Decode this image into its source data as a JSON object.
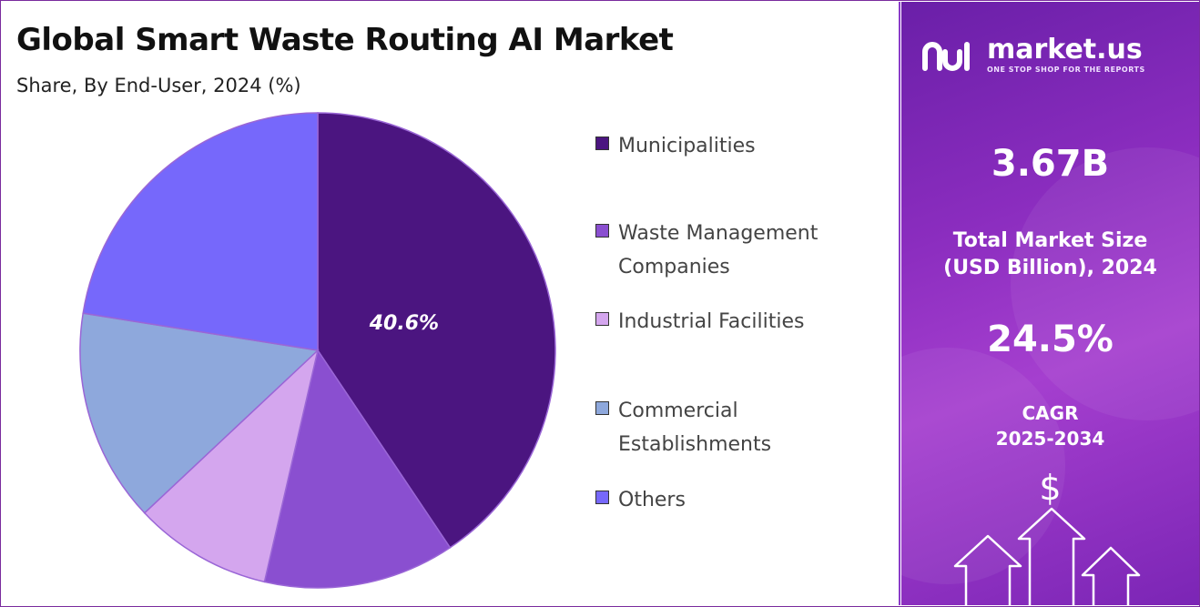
{
  "title": "Global Smart Waste Routing AI Market",
  "subtitle": "Share, By End-User, 2024 (%)",
  "chart_data": {
    "type": "pie",
    "title": "Global Smart Waste Routing AI Market",
    "subtitle": "Share, By End-User, 2024 (%)",
    "categories": [
      "Municipalities",
      "Waste Management Companies",
      "Industrial Facilities",
      "Commercial Establishments",
      "Others"
    ],
    "values": [
      40.6,
      13.0,
      9.4,
      14.5,
      22.5
    ],
    "data_labels": [
      "40.6%",
      "",
      "",
      "",
      ""
    ],
    "colors": [
      "#4b1580",
      "#8a4fd0",
      "#d4a6ee",
      "#8ea8dc",
      "#7668fb"
    ],
    "start_angle_deg": 0,
    "direction": "clockwise",
    "legend_position": "right"
  },
  "legend": {
    "items": [
      {
        "label": "Municipalities",
        "color": "#4b1580"
      },
      {
        "label": "Waste Management Companies",
        "color": "#8a4fd0"
      },
      {
        "label": "Industrial Facilities",
        "color": "#d4a6ee"
      },
      {
        "label": "Commercial Establishments",
        "color": "#8ea8dc"
      },
      {
        "label": "Others",
        "color": "#7668fb"
      }
    ]
  },
  "sidebar": {
    "brand": "market.us",
    "tagline": "ONE STOP SHOP FOR THE REPORTS",
    "market_size_value": "3.67B",
    "market_size_label_line1": "Total Market Size",
    "market_size_label_line2": "(USD Billion), 2024",
    "cagr_value": "24.5%",
    "cagr_label_line1": "CAGR",
    "cagr_label_line2": "2025-2034",
    "currency_symbol": "$",
    "logo_icon": "market-us-logo-icon",
    "growth_icon": "growth-arrows-icon"
  }
}
